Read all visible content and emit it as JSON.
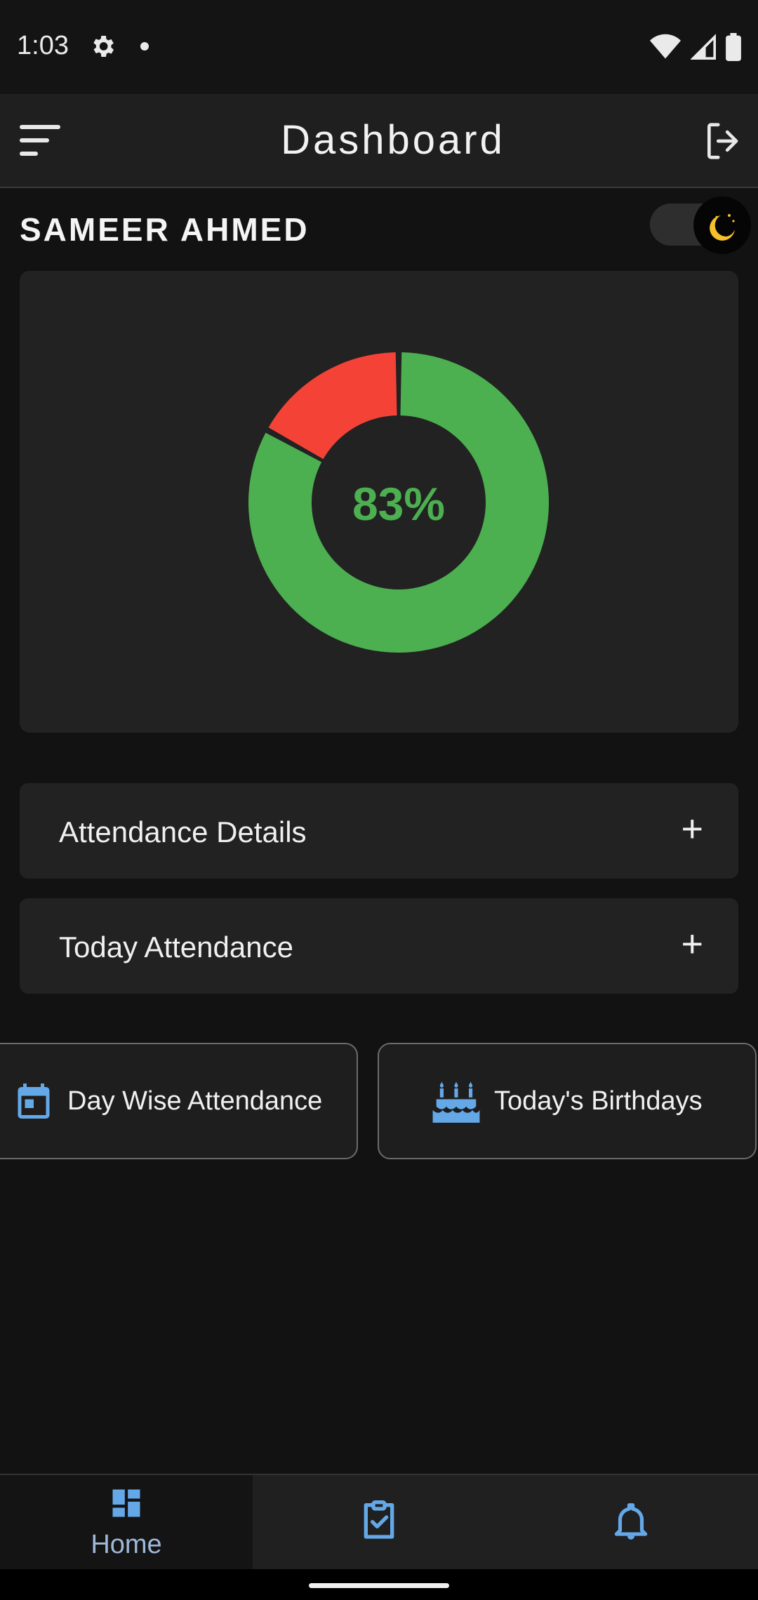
{
  "status": {
    "time": "1:03"
  },
  "appbar": {
    "title": "Dashboard"
  },
  "user": {
    "name": "SAMEER AHMED"
  },
  "attendance_chart": {
    "percent_label": "83%",
    "present_fraction": 0.83,
    "colors": {
      "present": "#4caf50",
      "absent": "#f44336"
    }
  },
  "accordions": [
    {
      "label": "Attendance Details",
      "toggle": "+"
    },
    {
      "label": "Today Attendance",
      "toggle": "+"
    }
  ],
  "actions": {
    "day_wise": "Day Wise Attendance",
    "birthdays": "Today's Birthdays"
  },
  "bottom_nav": {
    "home_label": "Home"
  },
  "icons": [
    "settings-icon",
    "wifi-icon",
    "signal-icon",
    "battery-icon",
    "menu-icon",
    "logout-icon",
    "moon-icon",
    "calendar-icon",
    "cake-icon",
    "home-grid-icon",
    "clipboard-check-icon",
    "bell-icon"
  ]
}
